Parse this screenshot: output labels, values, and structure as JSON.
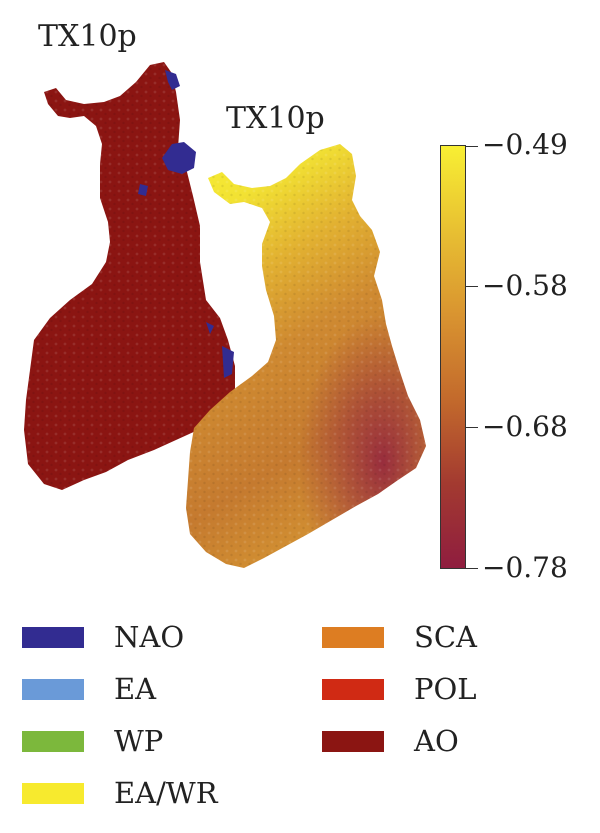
{
  "left_map": {
    "title": "TX10p",
    "colors": {
      "AO": "#8b1512",
      "NAO": "#322c91"
    }
  },
  "right_map": {
    "title": "TX10p",
    "colorbar": {
      "ticks": [
        "−0.49",
        "−0.58",
        "−0.68",
        "−0.78"
      ],
      "range": [
        -0.78,
        -0.49
      ],
      "gradient_colors": [
        "#f8ef33",
        "#e8c032",
        "#d99430",
        "#c36a2c",
        "#a33a30",
        "#8f1d3f"
      ]
    }
  },
  "legend": {
    "items": [
      {
        "label": "NAO",
        "color": "#322c91"
      },
      {
        "label": "EA",
        "color": "#6a9ad8"
      },
      {
        "label": "WP",
        "color": "#7cb83c"
      },
      {
        "label": "EA/WR",
        "color": "#f7ea2e"
      },
      {
        "label": "SCA",
        "color": "#dd7d22"
      },
      {
        "label": "POL",
        "color": "#d02a14"
      },
      {
        "label": "AO",
        "color": "#8b1512"
      }
    ]
  }
}
